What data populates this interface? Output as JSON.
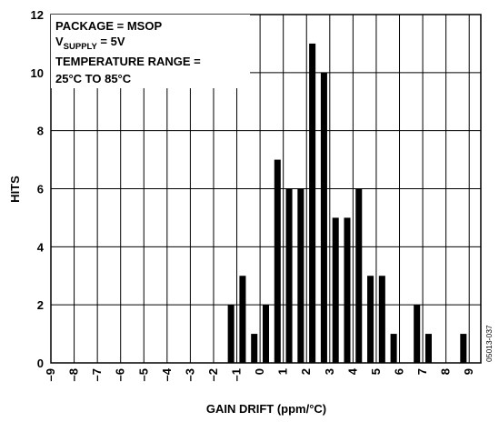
{
  "chart_data": {
    "type": "bar",
    "xlabel": "GAIN DRIFT (ppm/°C)",
    "ylabel": "HITS",
    "xlim": [
      -9,
      9.5
    ],
    "ylim": [
      0,
      12
    ],
    "x_ticks": [
      -9,
      -8,
      -7,
      -6,
      -5,
      -4,
      -3,
      -2,
      -1,
      0,
      1,
      2,
      3,
      4,
      5,
      6,
      7,
      8,
      9
    ],
    "y_ticks": [
      0,
      2,
      4,
      6,
      8,
      10,
      12
    ],
    "grid": true,
    "bin_width": 0.5,
    "x": [
      -1.25,
      -0.75,
      -0.25,
      0.25,
      0.75,
      1.25,
      1.75,
      2.25,
      2.75,
      3.25,
      3.75,
      4.25,
      4.75,
      5.25,
      5.75,
      6.75,
      7.25,
      8.75
    ],
    "values": [
      2,
      3,
      1,
      2,
      7,
      6,
      6,
      11,
      10,
      5,
      5,
      6,
      3,
      3,
      1,
      2,
      1,
      1
    ],
    "annotation": {
      "line1": "PACKAGE = MSOP",
      "line2_main": "V",
      "line2_sub": "SUPPLY",
      "line2_rest": " = 5V",
      "line3": "TEMPERATURE RANGE =",
      "line4": "25°C TO 85°C"
    },
    "figure_code": "05013-037"
  }
}
